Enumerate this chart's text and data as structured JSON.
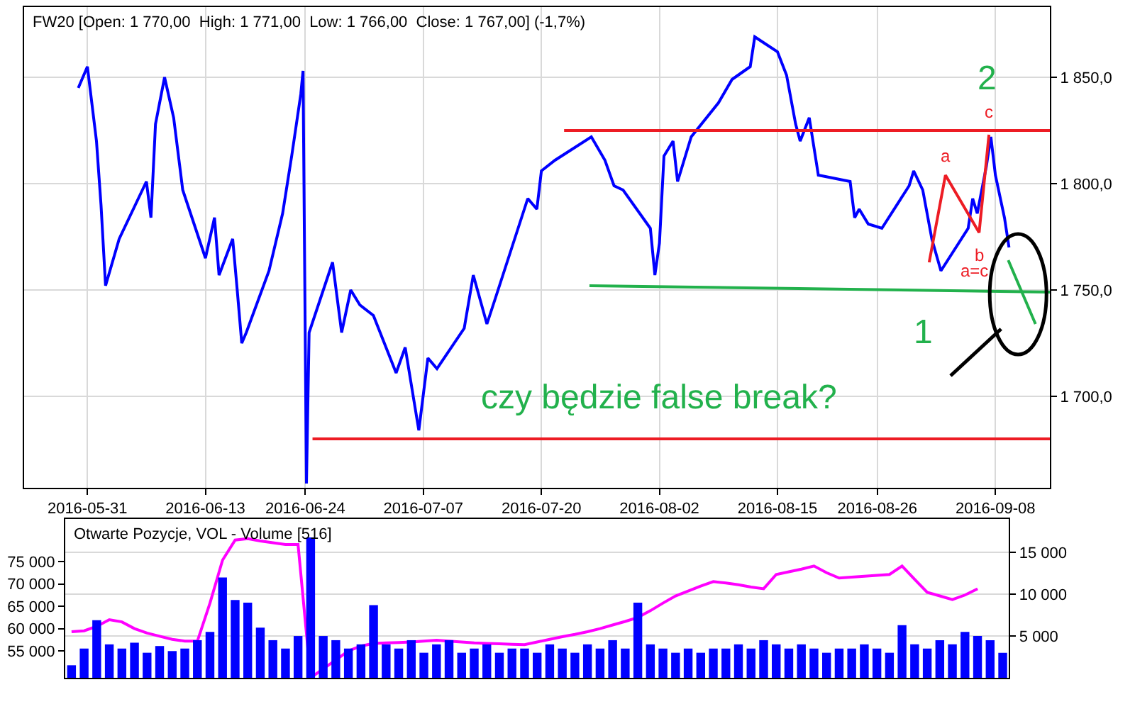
{
  "chart_data": [
    {
      "type": "line",
      "title": "FW20 [Open: 1 770,00  High: 1 771,00  Low: 1 766,00  Close: 1 767,00] (-1,7%)",
      "xlim": [
        "2016-05-24",
        "2016-09-14"
      ],
      "xticks": [
        "2016-05-31",
        "2016-06-13",
        "2016-06-24",
        "2016-07-07",
        "2016-07-20",
        "2016-08-02",
        "2016-08-15",
        "2016-08-26",
        "2016-09-08"
      ],
      "ylim": [
        1657,
        1883
      ],
      "yticks": [
        {
          "value": 1700,
          "label": "1 700,0"
        },
        {
          "value": 1750,
          "label": "1 750,0"
        },
        {
          "value": 1800,
          "label": "1 800,0"
        },
        {
          "value": 1850,
          "label": "1 850,0"
        }
      ],
      "grid": true,
      "marker": "none",
      "series": [
        {
          "color": "#0000ff",
          "x": [
            "2016-05-30",
            "2016-05-31",
            "2016-06-01",
            "2016-06-01T12:00",
            "2016-06-02",
            "2016-06-03T12:00",
            "2016-06-06T12:00",
            "2016-06-07",
            "2016-06-07T12:00",
            "2016-06-08T12:00",
            "2016-06-09T12:00",
            "2016-06-10T12:00",
            "2016-06-13",
            "2016-06-14",
            "2016-06-14T12:00",
            "2016-06-16",
            "2016-06-16T12:00",
            "2016-06-17",
            "2016-06-17T12:00",
            "2016-06-20",
            "2016-06-21T12:00",
            "2016-06-22T12:00",
            "2016-06-23T12:00",
            "2016-06-23T18:00",
            "2016-06-24T03:00",
            "2016-06-24T10:00",
            "2016-06-27",
            "2016-06-28",
            "2016-06-29",
            "2016-06-30",
            "2016-07-01T12:00",
            "2016-07-04",
            "2016-07-05",
            "2016-07-06T12:00",
            "2016-07-07T12:00",
            "2016-07-08T12:00",
            "2016-07-11T12:00",
            "2016-07-12T12:00",
            "2016-07-14",
            "2016-07-15",
            "2016-07-18T12:00",
            "2016-07-19T12:00",
            "2016-07-20",
            "2016-07-21T12:00",
            "2016-07-25T12:00",
            "2016-07-27",
            "2016-07-28",
            "2016-07-29",
            "2016-08-01",
            "2016-08-01T12:00",
            "2016-08-02",
            "2016-08-02T12:00",
            "2016-08-03T12:00",
            "2016-08-04",
            "2016-08-05T12:00",
            "2016-08-08T12:00",
            "2016-08-10",
            "2016-08-12",
            "2016-08-12T12:00",
            "2016-08-15",
            "2016-08-16",
            "2016-08-17",
            "2016-08-17T12:00",
            "2016-08-18T12:00",
            "2016-08-19T12:00",
            "2016-08-23",
            "2016-08-23T12:00",
            "2016-08-24",
            "2016-08-25",
            "2016-08-26T12:00",
            "2016-08-29T12:00",
            "2016-08-30",
            "2016-08-31",
            "2016-09-01",
            "2016-09-02",
            "2016-09-05",
            "2016-09-05T12:00",
            "2016-09-06",
            "2016-09-07",
            "2016-09-07T12:00",
            "2016-09-08",
            "2016-09-09",
            "2016-09-09T12:00"
          ],
          "values": [
            1845,
            1855,
            1820,
            1790,
            1752,
            1774,
            1801,
            1784,
            1828,
            1850,
            1831,
            1797,
            1765,
            1784,
            1757,
            1774,
            1750,
            1725,
            1730,
            1759,
            1786,
            1813,
            1842,
            1853,
            1659,
            1730,
            1763,
            1730,
            1750,
            1743,
            1738,
            1711,
            1723,
            1684,
            1718,
            1713,
            1732,
            1757,
            1734,
            1747,
            1793,
            1788,
            1806,
            1811,
            1822,
            1811,
            1799,
            1797,
            1779,
            1757,
            1772,
            1813,
            1820,
            1801,
            1822,
            1838,
            1849,
            1855,
            1869,
            1862,
            1851,
            1828,
            1820,
            1831,
            1804,
            1801,
            1784,
            1788,
            1781,
            1779,
            1799,
            1806,
            1797,
            1774,
            1759,
            1779,
            1793,
            1786,
            1808,
            1822,
            1804,
            1784,
            1770
          ]
        },
        {
          "color": "#ed1c24",
          "x": [
            "2016-07-22T12:00",
            "2016-09-14"
          ],
          "values": [
            1825,
            1825
          ]
        },
        {
          "color": "#ed1c24",
          "x": [
            "2016-06-24T19:00",
            "2016-09-14"
          ],
          "values": [
            1680,
            1680
          ]
        },
        {
          "color": "#22b14c",
          "x": [
            "2016-07-25T07:00",
            "2016-09-14"
          ],
          "values": [
            1752,
            1749
          ]
        },
        {
          "color": "#ed1c24",
          "x": [
            "2016-08-31T17:00",
            "2016-09-02T12:00",
            "2016-09-06T05:00",
            "2016-09-07T07:00"
          ],
          "values": [
            1763,
            1804,
            1777,
            1823
          ]
        },
        {
          "color": "#22b14c",
          "x": [
            "2016-09-09T10:00",
            "2016-09-12T10:00"
          ],
          "values": [
            1764,
            1734
          ]
        }
      ],
      "annotations": [
        {
          "text": "a",
          "x": "2016-09-02T12:00",
          "y": 1804
        },
        {
          "text": "b",
          "x": "2016-09-06T05:00",
          "y": 1777
        },
        {
          "text": "c",
          "x": "2016-09-07T07:00",
          "y": 1823
        },
        {
          "text": "2",
          "x": "2016-09-07T07:00",
          "y": 1823
        },
        {
          "text": "a=c",
          "x": "2016-09-07T07:00",
          "y": 1750
        },
        {
          "text": "1",
          "x": "2016-08-31T02:00",
          "y": 1750
        },
        "czy będzie false break?"
      ]
    },
    {
      "type": "bar",
      "title": "Otwarte Pozycje, VOL - Volume [516]",
      "categories": [
        null,
        null,
        null,
        null,
        null,
        null,
        null,
        null,
        null,
        null,
        null,
        null,
        null,
        null,
        null,
        null,
        null,
        null,
        null,
        null,
        null,
        null,
        null,
        null,
        null,
        null,
        null,
        null,
        null,
        null,
        null,
        null,
        null,
        null,
        null,
        null,
        null,
        null,
        null,
        null,
        null,
        null,
        null,
        null,
        null,
        null,
        null,
        null,
        null,
        null,
        null,
        null,
        null,
        null,
        null,
        null,
        null,
        null,
        null,
        null,
        null,
        null,
        null,
        null,
        null,
        null,
        null,
        null,
        null,
        null,
        null,
        null,
        null,
        null,
        null
      ],
      "tick_labels": "y",
      "ylim": [
        49000,
        84500
      ],
      "yticks": [
        {
          "value": 55000,
          "label": "55 000"
        },
        {
          "value": 60000,
          "label": "60 000"
        },
        {
          "value": 65000,
          "label": "65 000"
        },
        {
          "value": 70000,
          "label": "70 000"
        },
        {
          "value": 75000,
          "label": "75 000"
        }
      ],
      "y2lim": [
        0,
        19000
      ],
      "y2ticks": [
        {
          "value": 5000,
          "label": "5 000"
        },
        {
          "value": 10000,
          "label": "10 000"
        },
        {
          "value": 15000,
          "label": "15 000"
        }
      ],
      "grid": "y",
      "series": [
        {
          "type": "bar",
          "axis": "y2",
          "color": "#0000ff",
          "values": [
            1500,
            3500,
            6900,
            4000,
            3500,
            4200,
            3000,
            3800,
            3200,
            3500,
            4500,
            5500,
            12000,
            9300,
            9000,
            6000,
            4500,
            3500,
            5000,
            16800,
            5000,
            4500,
            3500,
            4000,
            8700,
            4000,
            3500,
            4500,
            3000,
            4000,
            4500,
            3000,
            3500,
            4000,
            3000,
            3500,
            3500,
            3000,
            4000,
            3500,
            3000,
            4000,
            3500,
            4500,
            3500,
            9000,
            4000,
            3500,
            3000,
            3500,
            3000,
            3500,
            3500,
            4000,
            3500,
            4500,
            4000,
            3500,
            4000,
            3500,
            3000,
            3500,
            3500,
            4000,
            3500,
            3000,
            6300,
            4000,
            3500,
            4500,
            4000,
            5500,
            5000,
            4500,
            3000
          ]
        },
        {
          "type": "line",
          "color": "#ff00ff",
          "values": [
            59300,
            59500,
            60500,
            62000,
            61500,
            60000,
            59000,
            58300,
            57600,
            57200,
            57200,
            65700,
            75300,
            79800,
            80100,
            79600,
            79200,
            78800,
            78800,
            49000,
            51000,
            53000,
            55000,
            56100,
            56700,
            56800,
            56900,
            57000,
            57200,
            57400,
            57200,
            57000,
            56800,
            56700,
            56600,
            56500,
            56400,
            57000,
            57600,
            58200,
            58700,
            59300,
            60000,
            60800,
            61600,
            62500,
            64000,
            65700,
            67300,
            68400,
            69500,
            70500,
            70200,
            69800,
            69300,
            68900,
            72100,
            72700,
            73300,
            74000,
            72500,
            71300,
            71500,
            71700,
            71900,
            72100,
            74000,
            71000,
            68100,
            67300,
            66500,
            67500,
            68900,
            null,
            null
          ]
        }
      ]
    }
  ]
}
